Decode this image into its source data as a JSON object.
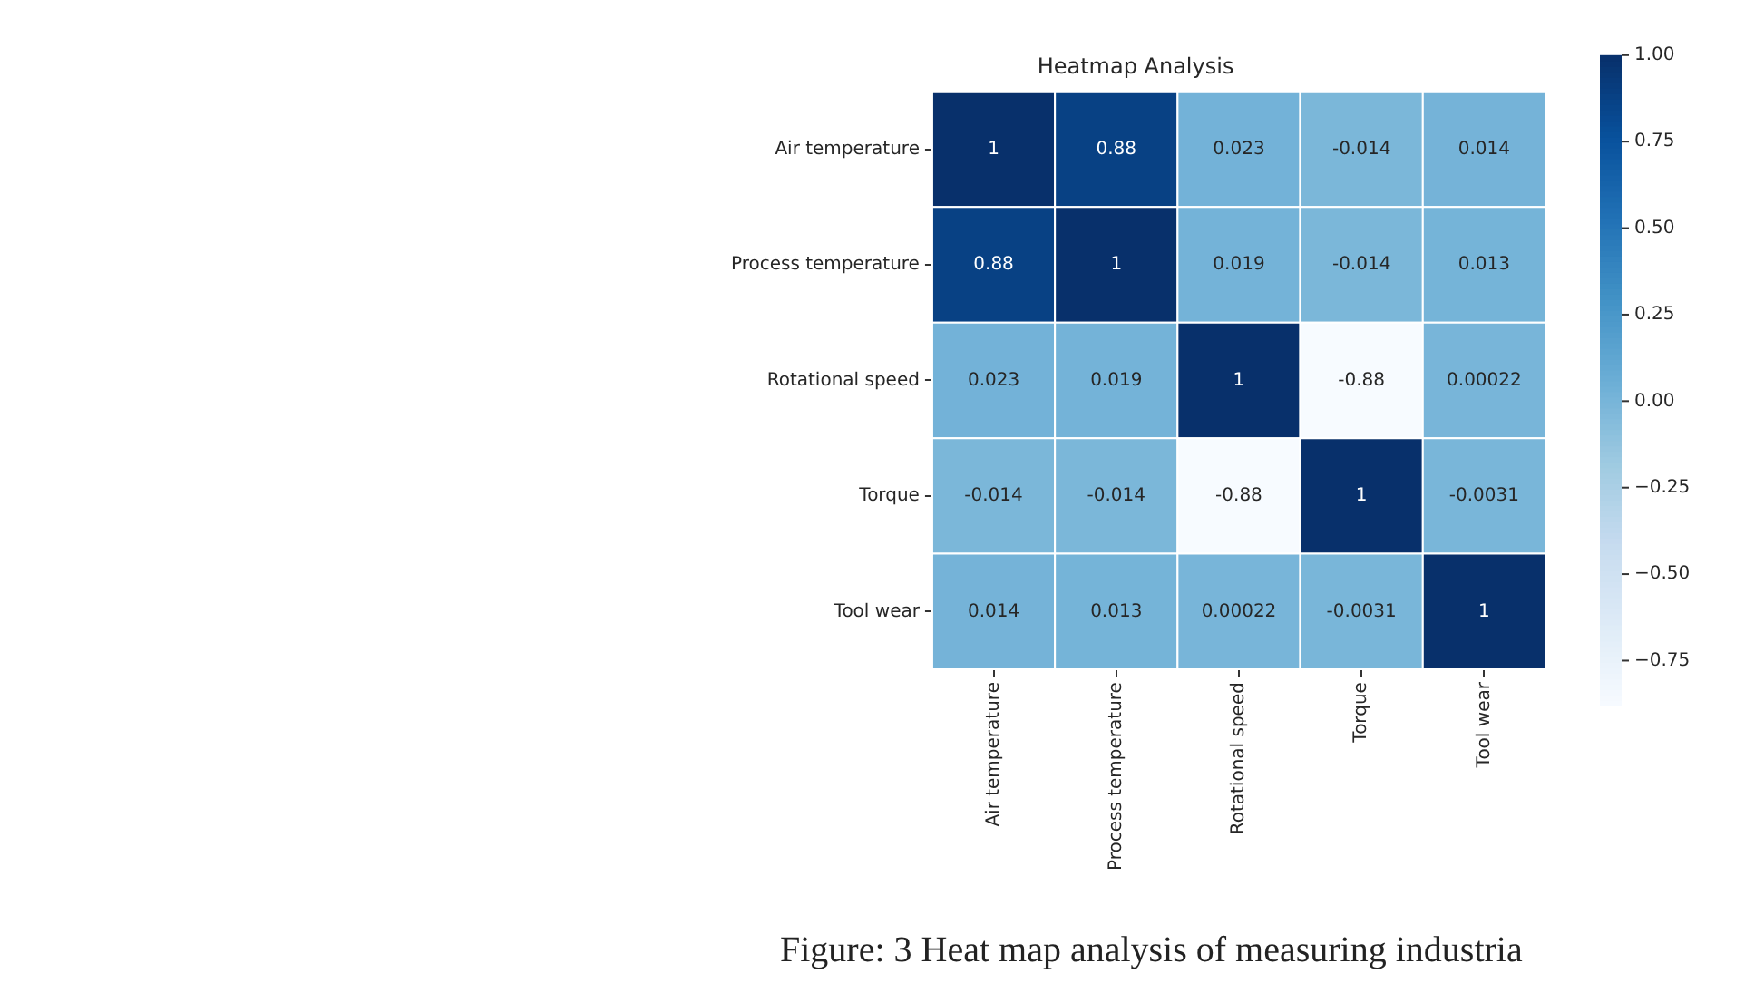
{
  "chart_data": {
    "type": "heatmap",
    "title": "Heatmap Analysis",
    "categories": [
      "Air temperature",
      "Process temperature",
      "Rotational speed",
      "Torque",
      "Tool wear"
    ],
    "y_categories": [
      "Air temperature",
      "Process temperature",
      "Rotational speed",
      "Torque",
      "Tool wear"
    ],
    "cells": [
      [
        1,
        0.88,
        0.023,
        -0.014,
        0.014
      ],
      [
        0.88,
        1,
        0.019,
        -0.014,
        0.013
      ],
      [
        0.023,
        0.019,
        1,
        -0.88,
        0.00022
      ],
      [
        -0.014,
        -0.014,
        -0.88,
        1,
        -0.0031
      ],
      [
        0.014,
        0.013,
        0.00022,
        -0.0031,
        1
      ]
    ],
    "clim": [
      -0.88,
      1
    ],
    "cticks": [
      {
        "value": 1,
        "label": "1.00"
      },
      {
        "value": 0.75,
        "label": "0.75"
      },
      {
        "value": 0.5,
        "label": "0.50"
      },
      {
        "value": 0.25,
        "label": "0.25"
      },
      {
        "value": 0,
        "label": "0.00"
      },
      {
        "value": -0.25,
        "label": "−0.25"
      },
      {
        "value": -0.5,
        "label": "−0.50"
      },
      {
        "value": -0.75,
        "label": "−0.75"
      }
    ],
    "data_labels": true,
    "annotations": [
      "Figure: 3 Heat map analysis of measuring industria"
    ]
  }
}
